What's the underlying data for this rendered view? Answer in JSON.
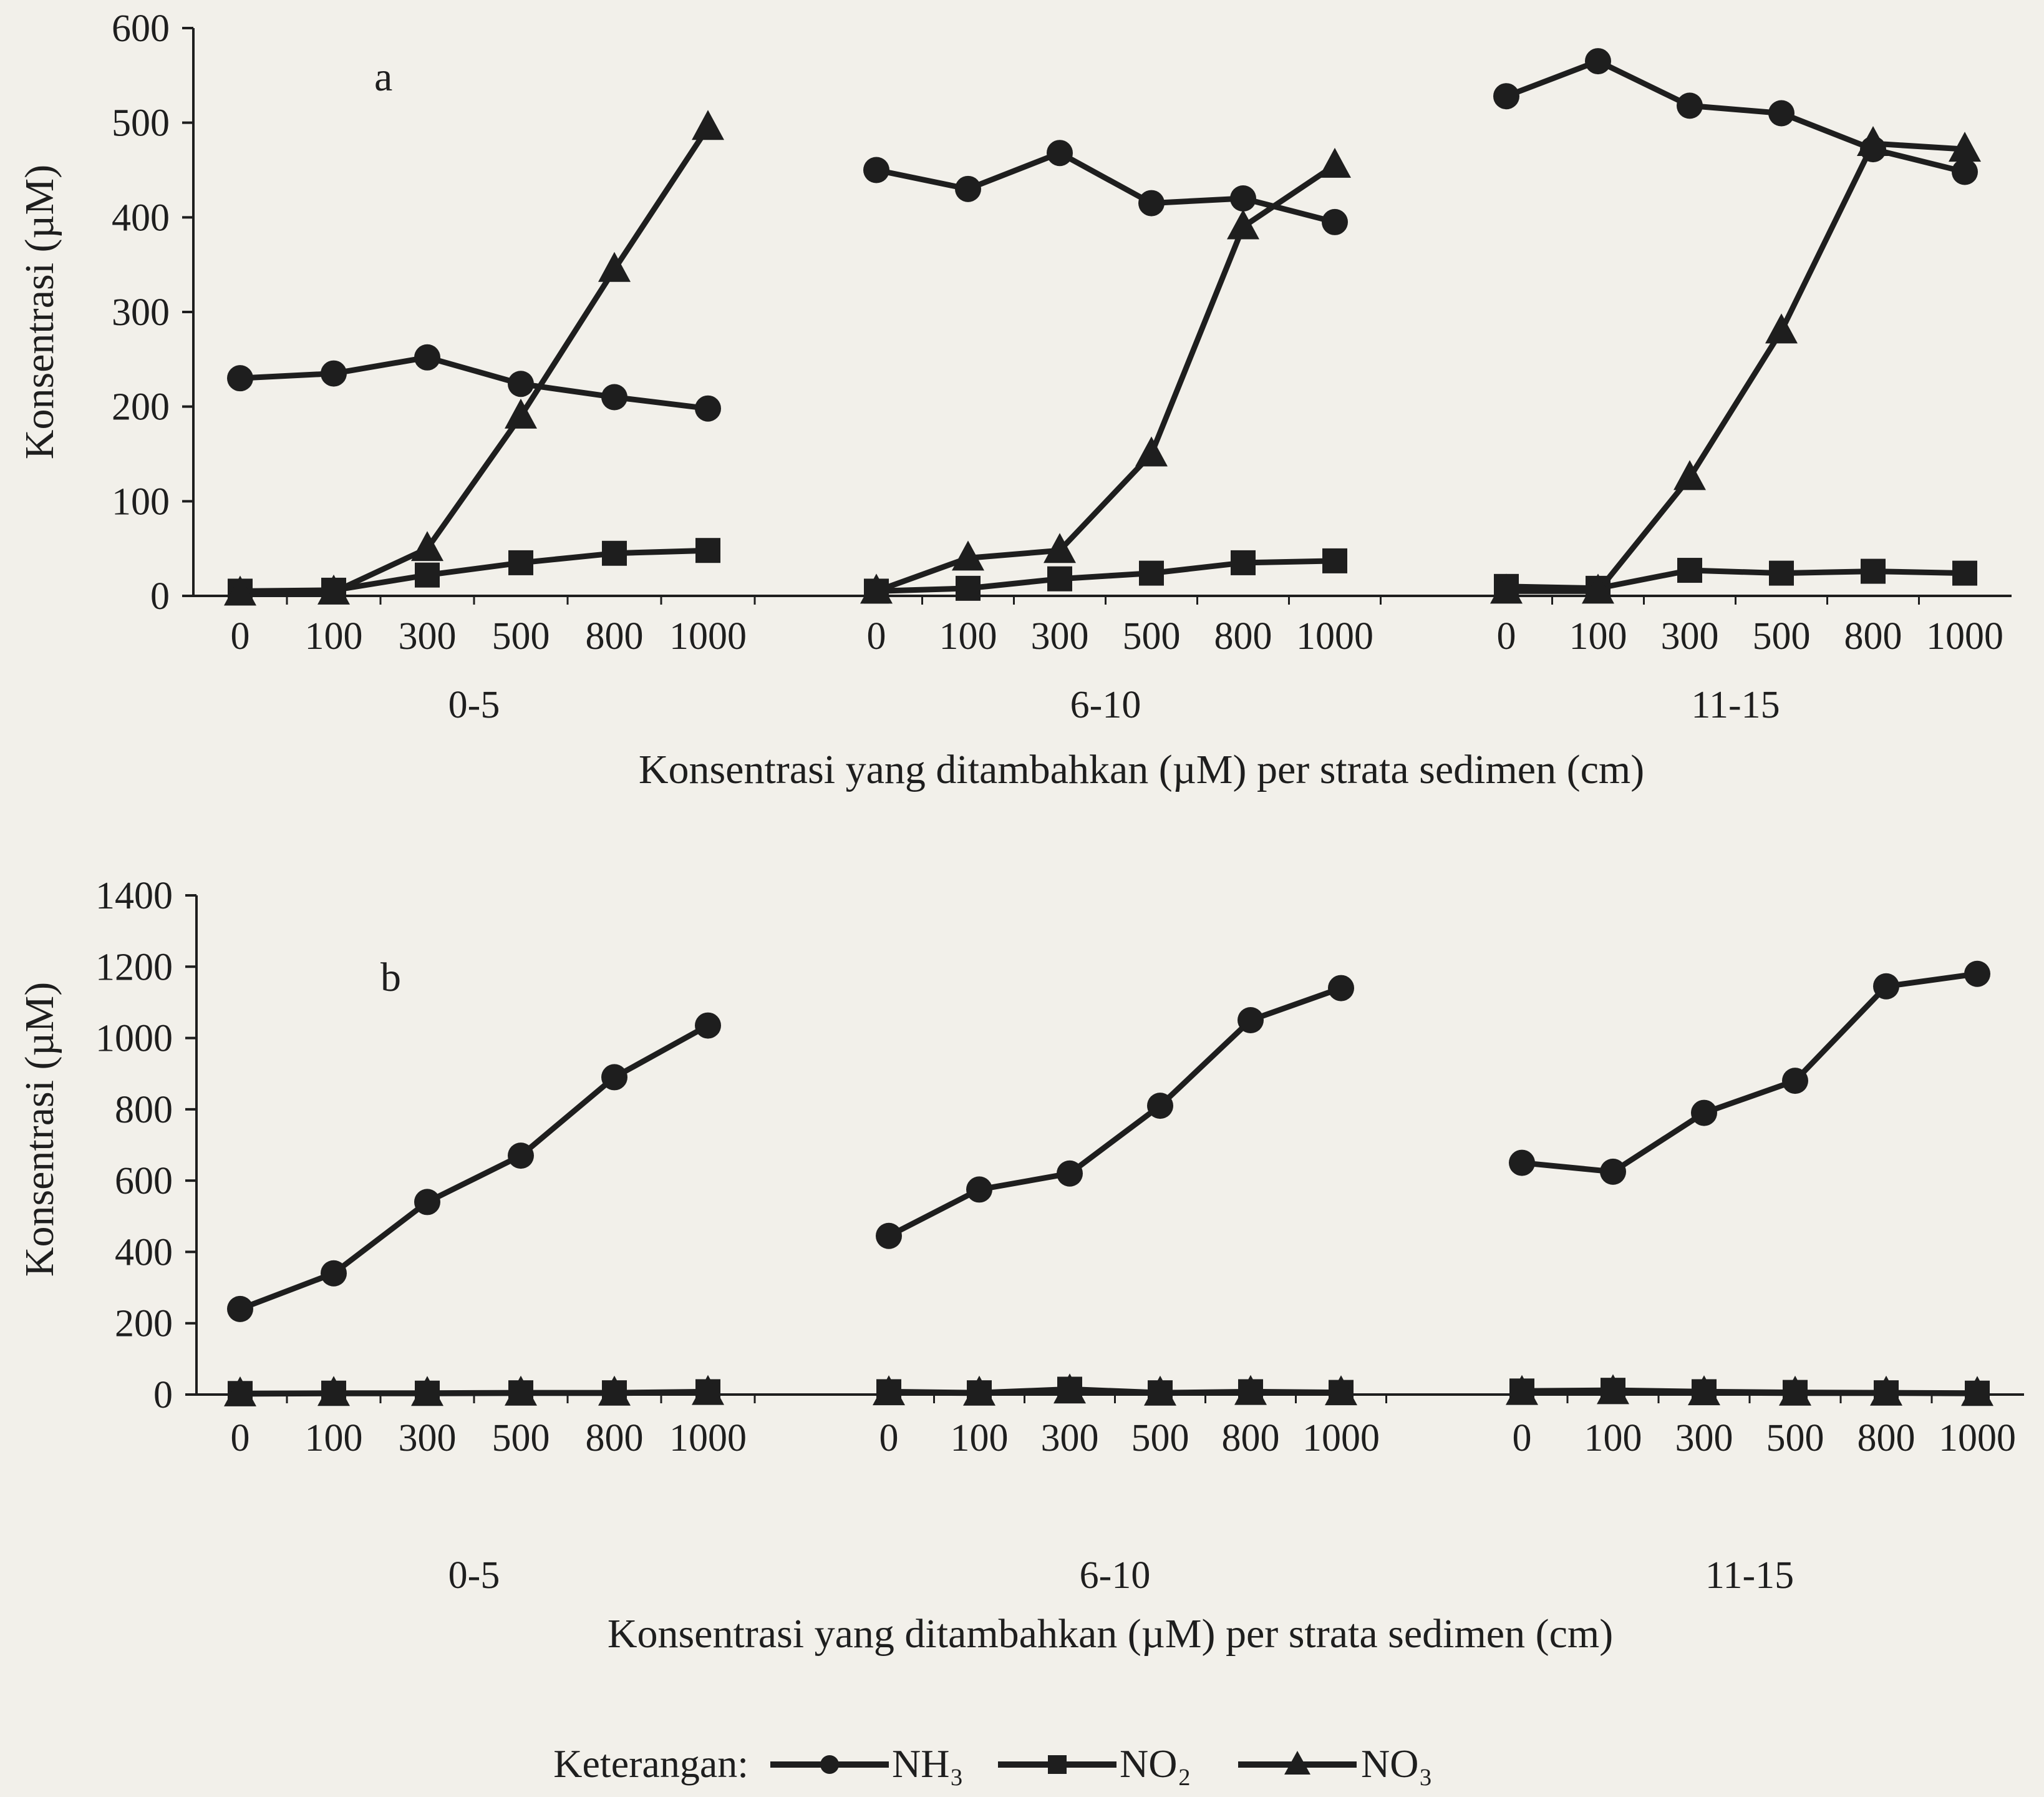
{
  "chart_data": [
    {
      "type": "line",
      "panel_label": "a",
      "ylabel": "Konsentrasi  (µM)",
      "xlabel": "Konsentrasi yang ditambahkan (µM)  per strata sedimen (cm)",
      "ylim": [
        0,
        600
      ],
      "yticks": [
        "0",
        "100",
        "200",
        "300",
        "400",
        "500",
        "600"
      ],
      "groups": [
        {
          "label": "0-5",
          "categories": [
            "0",
            "100",
            "300",
            "500",
            "800",
            "1000"
          ],
          "series": [
            {
              "name": "NH₃",
              "values": [
                230,
                235,
                252,
                224,
                210,
                198
              ]
            },
            {
              "name": "NO₂",
              "values": [
                5,
                6,
                22,
                35,
                45,
                48
              ]
            },
            {
              "name": "NO₃",
              "values": [
                3,
                4,
                50,
                190,
                345,
                495
              ]
            }
          ]
        },
        {
          "label": "6-10",
          "categories": [
            "0",
            "100",
            "300",
            "500",
            "800",
            "1000"
          ],
          "series": [
            {
              "name": "NH₃",
              "values": [
                450,
                430,
                468,
                415,
                420,
                395
              ]
            },
            {
              "name": "NO₂",
              "values": [
                5,
                8,
                18,
                24,
                35,
                37
              ]
            },
            {
              "name": "NO₃",
              "values": [
                5,
                40,
                48,
                150,
                390,
                455
              ]
            }
          ]
        },
        {
          "label": "11-15",
          "categories": [
            "0",
            "100",
            "300",
            "500",
            "800",
            "1000"
          ],
          "series": [
            {
              "name": "NH₃",
              "values": [
                528,
                565,
                518,
                510,
                472,
                448
              ]
            },
            {
              "name": "NO₂",
              "values": [
                10,
                8,
                27,
                24,
                26,
                24
              ]
            },
            {
              "name": "NO₃",
              "values": [
                5,
                5,
                125,
                280,
                478,
                472
              ]
            }
          ]
        }
      ]
    },
    {
      "type": "line",
      "panel_label": "b",
      "ylabel": "Konsentrasi  (µM)",
      "xlabel": "Konsentrasi  yang ditambahkan (µM) per strata sedimen (cm)",
      "ylim": [
        0,
        1400
      ],
      "yticks": [
        "0",
        "200",
        "400",
        "600",
        "800",
        "1000",
        "1200",
        "1400"
      ],
      "groups": [
        {
          "label": "0-5",
          "categories": [
            "0",
            "100",
            "300",
            "500",
            "800",
            "1000"
          ],
          "series": [
            {
              "name": "NH₃",
              "values": [
                240,
                340,
                540,
                670,
                890,
                1035
              ]
            },
            {
              "name": "NO₂",
              "values": [
                3,
                4,
                4,
                5,
                5,
                8
              ]
            },
            {
              "name": "NO₃",
              "values": [
                2,
                3,
                3,
                4,
                4,
                6
              ]
            }
          ]
        },
        {
          "label": "6-10",
          "categories": [
            "0",
            "100",
            "300",
            "500",
            "800",
            "1000"
          ],
          "series": [
            {
              "name": "NH₃",
              "values": [
                445,
                575,
                620,
                810,
                1050,
                1140
              ]
            },
            {
              "name": "NO₂",
              "values": [
                8,
                5,
                15,
                5,
                8,
                6
              ]
            },
            {
              "name": "NO₃",
              "values": [
                5,
                4,
                10,
                4,
                6,
                5
              ]
            }
          ]
        },
        {
          "label": "11-15",
          "categories": [
            "0",
            "100",
            "300",
            "500",
            "800",
            "1000"
          ],
          "series": [
            {
              "name": "NH₃",
              "values": [
                650,
                625,
                790,
                880,
                1145,
                1180
              ]
            },
            {
              "name": "NO₂",
              "values": [
                10,
                12,
                8,
                6,
                5,
                4
              ]
            },
            {
              "name": "NO₃",
              "values": [
                6,
                8,
                5,
                4,
                4,
                3
              ]
            }
          ]
        }
      ]
    }
  ],
  "legend": {
    "title": "Keterangan:",
    "items": [
      {
        "label": "NH₃",
        "marker": "circle"
      },
      {
        "label": "NO₂",
        "marker": "square"
      },
      {
        "label": "NO₃",
        "marker": "triangle"
      }
    ]
  },
  "colors": {
    "ink": "#1e1e1e",
    "background": "#f2f0ea"
  }
}
